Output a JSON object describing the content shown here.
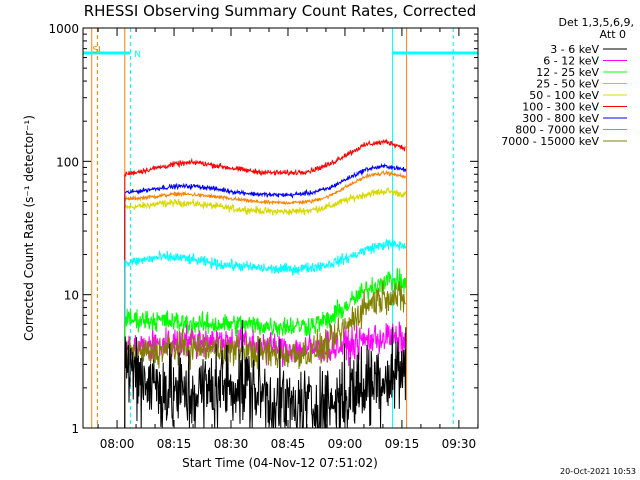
{
  "chart_data": {
    "type": "line",
    "title": "RHESSI Observing Summary Count Rates, Corrected",
    "xlabel": "Start Time (04-Nov-12 07:51:02)",
    "ylabel": "Corrected Count Rate (s⁻¹ detector⁻¹)",
    "yscale": "log",
    "ylim": [
      1,
      1000
    ],
    "xlim_minutes": [
      0,
      104
    ],
    "x_tick_labels": [
      "08:00",
      "08:15",
      "08:30",
      "08:45",
      "09:00",
      "09:15",
      "09:30"
    ],
    "x_tick_minutes": [
      8.97,
      23.97,
      38.97,
      53.97,
      68.97,
      83.97,
      98.97
    ],
    "y_tick_labels": [
      "1",
      "10",
      "100",
      "1000"
    ],
    "y_tick_values": [
      1,
      10,
      100,
      1000
    ],
    "grid": false,
    "legend_position": "top-right",
    "legend_header": [
      "Det 1,3,5,6,9,",
      "Att 0"
    ],
    "series": [
      {
        "name": "3 - 6 keV",
        "color": "#000000",
        "x": [
          11,
          15,
          20,
          25,
          30,
          35,
          40,
          45,
          50,
          55,
          60,
          65,
          70,
          75,
          80,
          85
        ],
        "y": [
          3,
          2.5,
          2,
          1.8,
          1.8,
          2,
          2.2,
          2,
          1.6,
          1.4,
          1.4,
          1.5,
          1.8,
          2.2,
          2.5,
          2.8
        ]
      },
      {
        "name": "6 - 12 keV",
        "color": "#ff00ff",
        "x": [
          11,
          15,
          20,
          25,
          30,
          35,
          40,
          45,
          50,
          55,
          60,
          65,
          70,
          75,
          80,
          85
        ],
        "y": [
          3.8,
          4,
          4.2,
          4.4,
          4.5,
          4.5,
          4.4,
          4.2,
          4,
          3.9,
          3.9,
          4,
          4.2,
          4.6,
          4.8,
          4.5
        ]
      },
      {
        "name": "12 - 25 keV",
        "color": "#00ff00",
        "x": [
          11,
          15,
          20,
          25,
          30,
          35,
          40,
          45,
          50,
          55,
          60,
          65,
          70,
          75,
          80,
          85
        ],
        "y": [
          6.5,
          6.5,
          6.4,
          6.2,
          6,
          6,
          6,
          5.9,
          5.8,
          5.8,
          5.9,
          6.5,
          8.5,
          11,
          13,
          12
        ]
      },
      {
        "name": "25 - 50 keV",
        "color": "#00ffff",
        "x": [
          11,
          15,
          20,
          25,
          30,
          35,
          40,
          45,
          50,
          55,
          60,
          65,
          70,
          75,
          80,
          85
        ],
        "y": [
          17,
          18,
          19,
          19,
          18,
          17,
          16.5,
          16,
          15.5,
          15.5,
          16,
          17,
          19,
          22,
          24,
          23
        ]
      },
      {
        "name": "50 - 100 keV",
        "color": "#d8d800",
        "x": [
          11,
          15,
          20,
          25,
          30,
          35,
          40,
          45,
          50,
          55,
          60,
          65,
          70,
          75,
          80,
          85
        ],
        "y": [
          45,
          46,
          48,
          49,
          48,
          46,
          44,
          43,
          42,
          42,
          43,
          46,
          52,
          57,
          60,
          56
        ]
      },
      {
        "name": "100 - 300 keV",
        "color": "#ff0000",
        "x": [
          11,
          15,
          20,
          25,
          30,
          35,
          40,
          45,
          50,
          55,
          60,
          65,
          70,
          75,
          80,
          85
        ],
        "y": [
          80,
          84,
          90,
          96,
          98,
          93,
          88,
          84,
          82,
          82,
          85,
          95,
          115,
          135,
          140,
          125
        ]
      },
      {
        "name": "300 - 800 keV",
        "color": "#0000ff",
        "x": [
          11,
          15,
          20,
          25,
          30,
          35,
          40,
          45,
          50,
          55,
          60,
          65,
          70,
          75,
          80,
          85
        ],
        "y": [
          58,
          60,
          63,
          65,
          65,
          62,
          59,
          57,
          56,
          56,
          58,
          63,
          75,
          88,
          92,
          86
        ]
      },
      {
        "name": "800 - 7000 keV",
        "color": "#ff8000",
        "x": [
          11,
          15,
          20,
          25,
          30,
          35,
          40,
          45,
          50,
          55,
          60,
          65,
          70,
          75,
          80,
          85
        ],
        "y": [
          52,
          53,
          55,
          57,
          56,
          54,
          52,
          50,
          49,
          49,
          50,
          55,
          66,
          78,
          82,
          76
        ]
      },
      {
        "name": "7000 - 15000 keV",
        "color": "#808000",
        "x": [
          11,
          15,
          20,
          25,
          30,
          35,
          40,
          45,
          50,
          55,
          60,
          65,
          70,
          75,
          80,
          85
        ],
        "y": [
          3.5,
          3.6,
          3.8,
          4,
          4,
          3.9,
          3.8,
          3.7,
          3.6,
          3.6,
          3.7,
          4.2,
          6,
          8.5,
          10,
          9
        ]
      }
    ],
    "annotations": [
      {
        "label": "SI",
        "color": "#ff8000",
        "x": 2.5,
        "y": 700
      },
      {
        "label": "N",
        "color": "#00ffff",
        "x": 13.5,
        "y": 650
      }
    ],
    "markers": [
      {
        "kind": "solid",
        "color": "#ff8000",
        "x": 2.3
      },
      {
        "kind": "dashed",
        "color": "#ff8000",
        "x": 3.8
      },
      {
        "kind": "solid",
        "color": "#ff8000",
        "x": 11
      },
      {
        "kind": "solid",
        "color": "#ff8000",
        "x": 85.2
      },
      {
        "kind": "dashed",
        "color": "#00ffff",
        "x": 12.5
      },
      {
        "kind": "solid",
        "color": "#00ffff",
        "x": 81.5
      },
      {
        "kind": "dashed",
        "color": "#00ffff",
        "x": 97.5
      }
    ],
    "night_bars": [
      {
        "color": "#00ffff",
        "from": 0,
        "to": 12.5,
        "y": 650
      },
      {
        "color": "#00ffff",
        "from": 81.5,
        "to": 104,
        "y": 650
      }
    ]
  },
  "timestamp": "20-Oct-2021 10:53"
}
